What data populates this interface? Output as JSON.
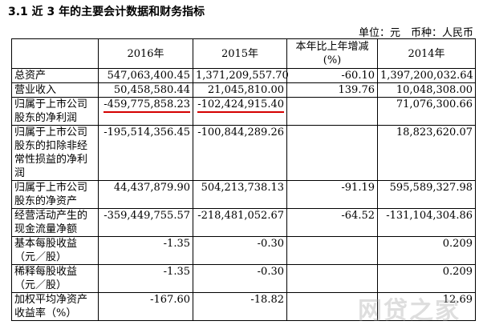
{
  "header": {
    "title": "3.1 近 3 年的主要会计数据和财务指标",
    "unit": "单位：元　币种：人民币"
  },
  "table": {
    "columns": [
      null,
      "2016年",
      "2015年",
      "本年比上年增减(%)",
      "2014年"
    ],
    "rows": [
      [
        "总资产",
        "547,063,400.45",
        "1,371,209,557.70",
        "-60.10",
        "1,397,200,032.64"
      ],
      [
        "营业收入",
        "50,458,580.44",
        "21,045,810.00",
        "139.76",
        "10,048,308.00"
      ],
      [
        "归属于上市公司股东的净利润",
        "-459,775,858.23",
        "-102,424,915.40",
        null,
        "71,076,300.66"
      ],
      [
        "归属于上市公司股东的扣除非经常性损益的净利润",
        "-195,514,356.45",
        "-100,844,289.26",
        null,
        "18,823,620.07"
      ],
      [
        "归属于上市公司股东的净资产",
        "44,437,879.90",
        "504,213,738.13",
        "-91.19",
        "595,589,327.98"
      ],
      [
        "经营活动产生的现金流量净额",
        "-359,449,755.57",
        "-218,481,052.67",
        "-64.52",
        "-131,104,304.86"
      ],
      [
        "基本每股收益（元／股）",
        "-1.35",
        "-0.30",
        null,
        "0.209"
      ],
      [
        "稀释每股收益（元／股）",
        "-1.35",
        "-0.30",
        null,
        "0.209"
      ],
      [
        "加权平均净资产收益率（%）",
        "-167.60",
        "-18.82",
        null,
        "12.69"
      ]
    ],
    "highlighted": [
      "2.1",
      "2.2"
    ]
  },
  "watermark": "网贷之家"
}
